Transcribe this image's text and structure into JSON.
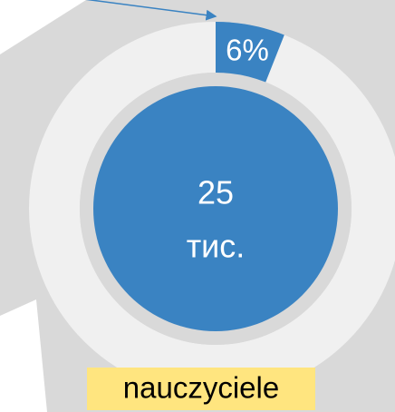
{
  "chart_data": {
    "type": "donut",
    "values": [
      6
    ],
    "value_labels": [
      "6%"
    ],
    "color": "#3a83c2",
    "center_text": [
      "25",
      "тис."
    ],
    "label": "nauczyciele"
  }
}
